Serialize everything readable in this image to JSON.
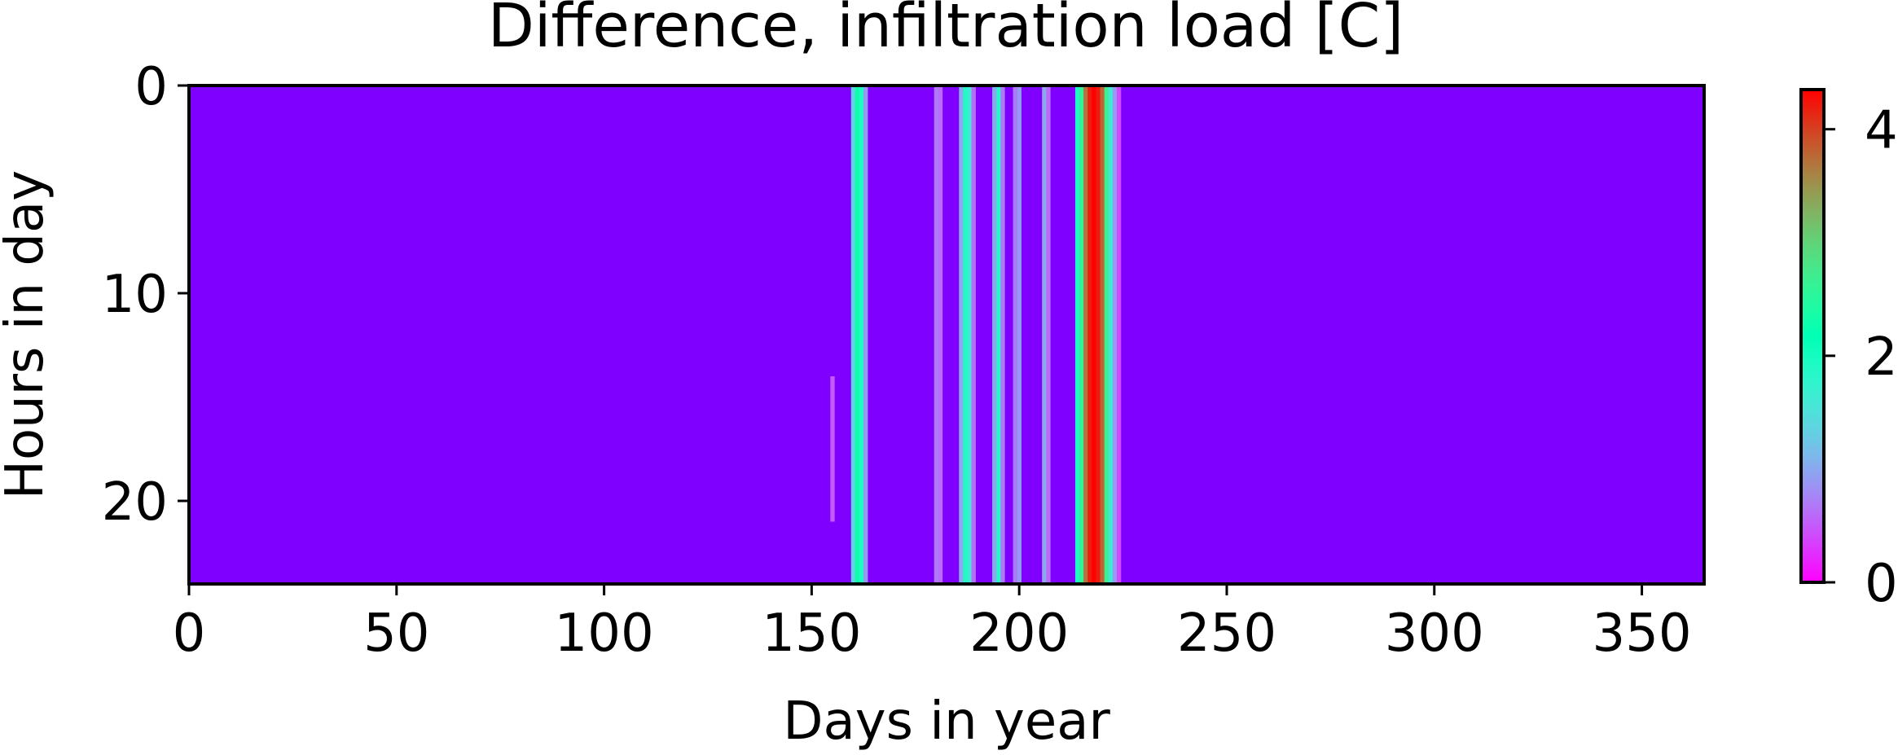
{
  "chart_data": {
    "type": "heatmap",
    "title": "Difference, infiltration load [C]",
    "xlabel": "Days in year",
    "ylabel": "Hours in day",
    "xlim": [
      0,
      365
    ],
    "ylim": [
      24,
      0
    ],
    "x_ticks": [
      0,
      50,
      100,
      150,
      200,
      250,
      300,
      350
    ],
    "y_ticks": [
      0,
      10,
      20
    ],
    "colormap": "rainbow",
    "colorbar": {
      "min": 0,
      "max": 4.35,
      "ticks": [
        0,
        2,
        4
      ]
    },
    "background_value": 0,
    "bands": [
      {
        "day": 155,
        "value": 0.5,
        "hours": [
          14,
          21
        ]
      },
      {
        "day": 160,
        "value": 1.4
      },
      {
        "day": 161,
        "value": 2.3
      },
      {
        "day": 162,
        "value": 1.9
      },
      {
        "day": 163,
        "value": 0.9
      },
      {
        "day": 180,
        "value": 0.7
      },
      {
        "day": 181,
        "value": 0.6
      },
      {
        "day": 186,
        "value": 1.0
      },
      {
        "day": 187,
        "value": 1.9
      },
      {
        "day": 188,
        "value": 1.6
      },
      {
        "day": 189,
        "value": 0.6
      },
      {
        "day": 194,
        "value": 1.0
      },
      {
        "day": 195,
        "value": 1.8
      },
      {
        "day": 196,
        "value": 0.7
      },
      {
        "day": 199,
        "value": 0.7
      },
      {
        "day": 200,
        "value": 0.9
      },
      {
        "day": 206,
        "value": 1.0
      },
      {
        "day": 207,
        "value": 0.6
      },
      {
        "day": 214,
        "value": 1.9
      },
      {
        "day": 215,
        "value": 2.6
      },
      {
        "day": 216,
        "value": 3.7
      },
      {
        "day": 217,
        "value": 4.2
      },
      {
        "day": 218,
        "value": 4.35
      },
      {
        "day": 219,
        "value": 4.2
      },
      {
        "day": 220,
        "value": 3.8
      },
      {
        "day": 221,
        "value": 2.7
      },
      {
        "day": 222,
        "value": 1.6
      },
      {
        "day": 223,
        "value": 0.9
      },
      {
        "day": 224,
        "value": 0.4
      }
    ]
  }
}
